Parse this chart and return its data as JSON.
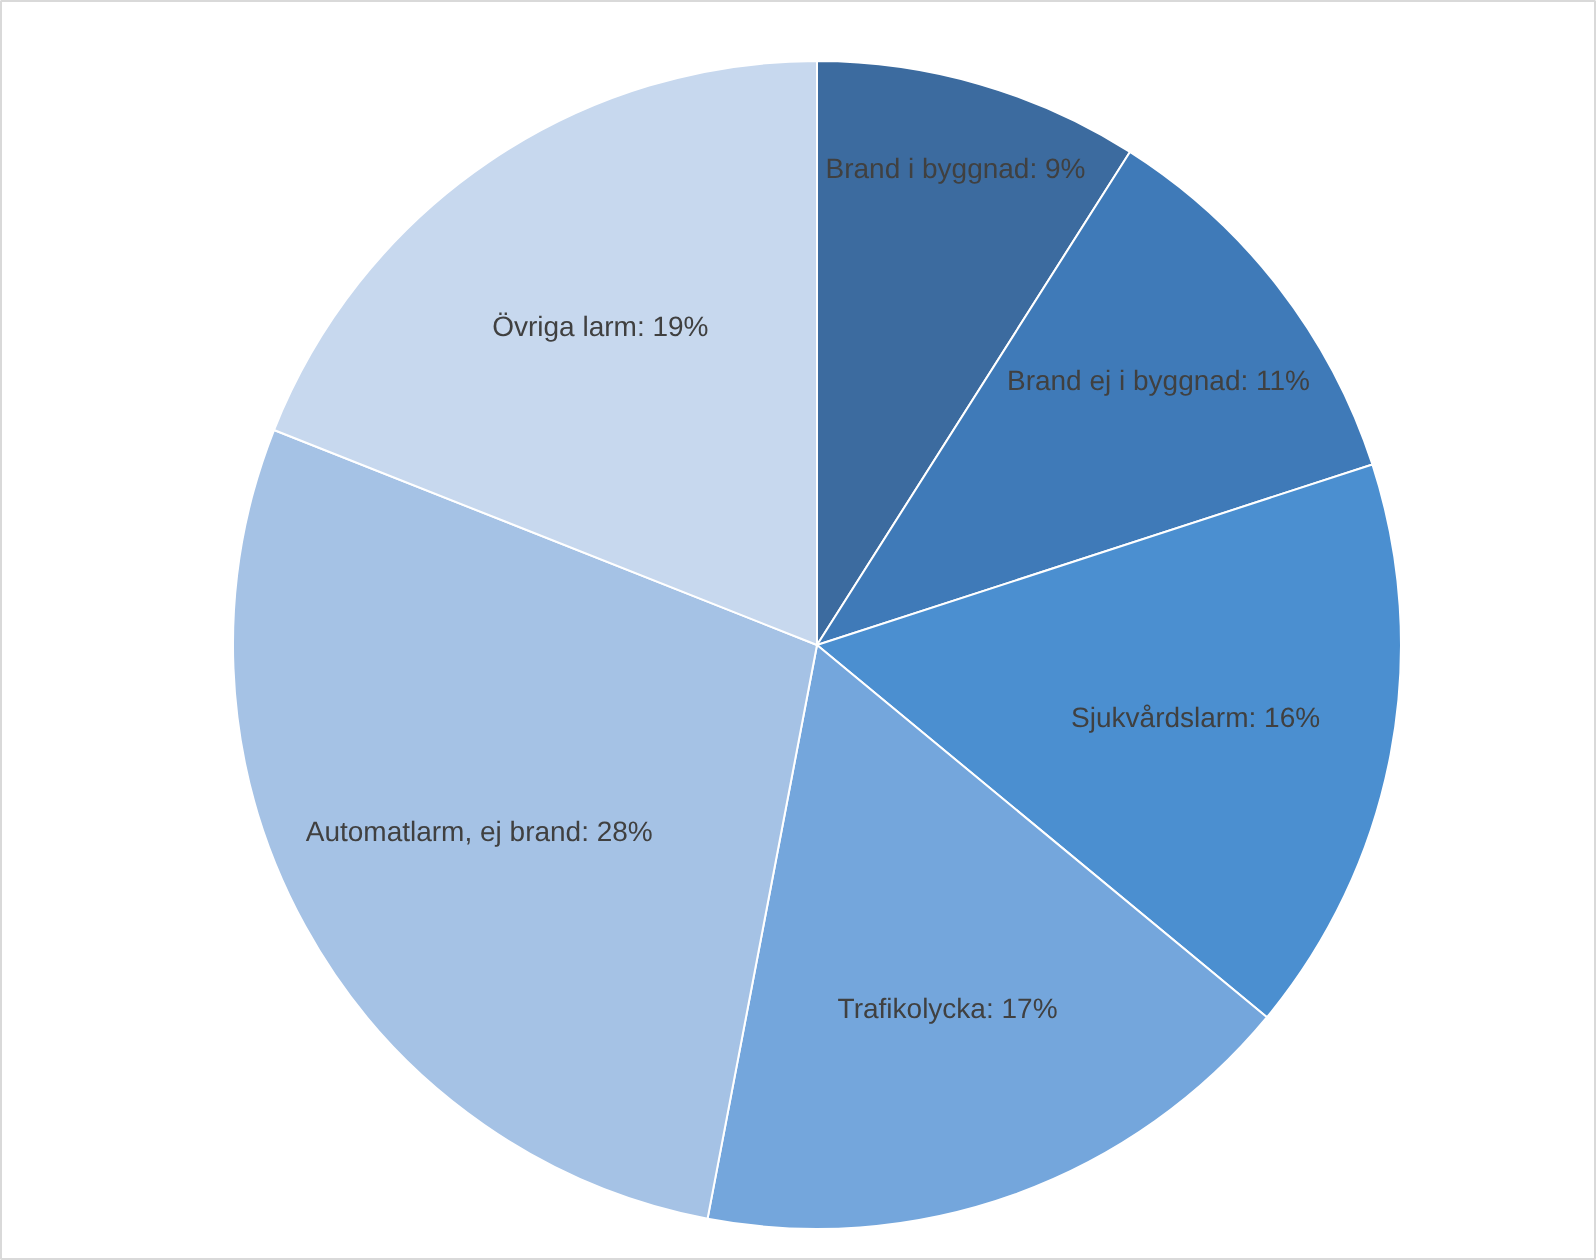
{
  "chart_data": {
    "type": "pie",
    "categories": [
      "Brand i byggnad",
      "Brand ej i byggnad",
      "Sjukvårdslarm",
      "Trafikolycka",
      "Automatlarm, ej brand",
      "Övriga larm"
    ],
    "values": [
      9,
      11,
      16,
      17,
      28,
      19
    ],
    "colors": [
      "#3c6b9f",
      "#3f7ab8",
      "#4b8fd0",
      "#74a6dc",
      "#a5c2e5",
      "#c7d8ee"
    ],
    "value_labels": [
      "9%",
      "11%",
      "16%",
      "17%",
      "28%",
      "19%"
    ]
  }
}
